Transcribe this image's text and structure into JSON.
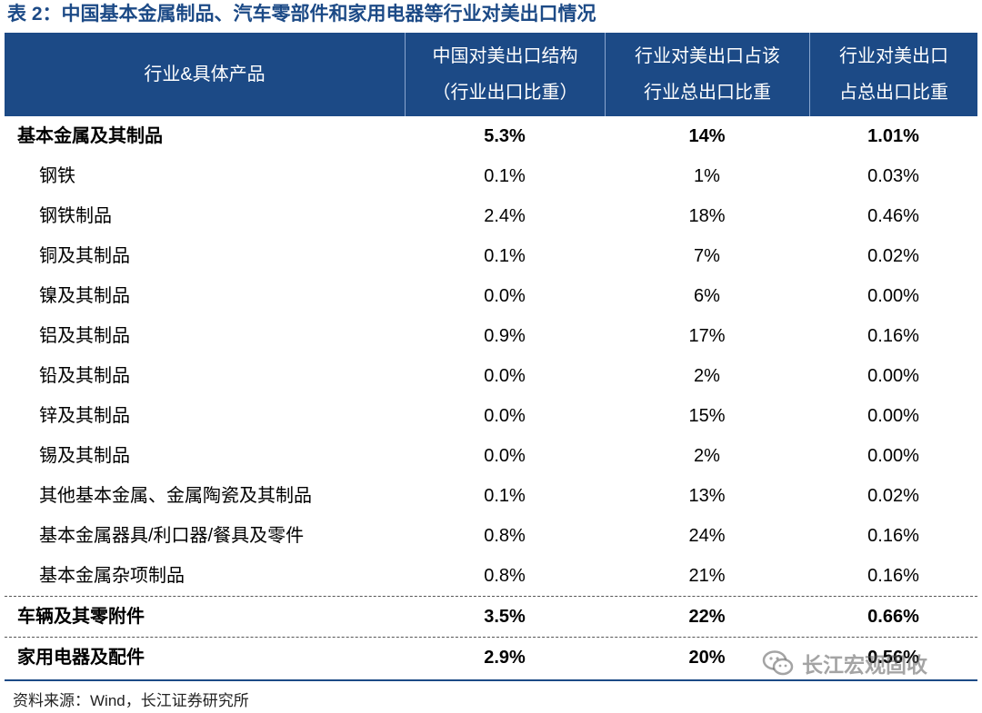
{
  "title": "表 2：中国基本金属制品、汽车零部件和家用电器等行业对美出口情况",
  "header": {
    "col0": "行业&具体产品",
    "col1_line1": "中国对美出口结构",
    "col1_line2": "（行业出口比重）",
    "col2_line1": "行业对美出口占该",
    "col2_line2": "行业总出口比重",
    "col3_line1": "行业对美出口",
    "col3_line2": "占总出口比重"
  },
  "rows": [
    {
      "name": "基本金属及其制品",
      "v1": "5.3%",
      "v2": "14%",
      "v3": "1.01%"
    },
    {
      "name": "钢铁",
      "v1": "0.1%",
      "v2": "1%",
      "v3": "0.03%"
    },
    {
      "name": "钢铁制品",
      "v1": "2.4%",
      "v2": "18%",
      "v3": "0.46%"
    },
    {
      "name": "铜及其制品",
      "v1": "0.1%",
      "v2": "7%",
      "v3": "0.02%"
    },
    {
      "name": "镍及其制品",
      "v1": "0.0%",
      "v2": "6%",
      "v3": "0.00%"
    },
    {
      "name": "铝及其制品",
      "v1": "0.9%",
      "v2": "17%",
      "v3": "0.16%"
    },
    {
      "name": "铅及其制品",
      "v1": "0.0%",
      "v2": "2%",
      "v3": "0.00%"
    },
    {
      "name": "锌及其制品",
      "v1": "0.0%",
      "v2": "15%",
      "v3": "0.00%"
    },
    {
      "name": "锡及其制品",
      "v1": "0.0%",
      "v2": "2%",
      "v3": "0.00%"
    },
    {
      "name": "其他基本金属、金属陶瓷及其制品",
      "v1": "0.1%",
      "v2": "13%",
      "v3": "0.02%"
    },
    {
      "name": "基本金属器具/利口器/餐具及零件",
      "v1": "0.8%",
      "v2": "24%",
      "v3": "0.16%"
    },
    {
      "name": "基本金属杂项制品",
      "v1": "0.8%",
      "v2": "21%",
      "v3": "0.16%"
    },
    {
      "name": "车辆及其零附件",
      "v1": "3.5%",
      "v2": "22%",
      "v3": "0.66%"
    },
    {
      "name": "家用电器及配件",
      "v1": "2.9%",
      "v2": "20%",
      "v3": "0.56%"
    }
  ],
  "source": "资料来源：Wind，长江证券研究所",
  "watermark": "长江宏观固收",
  "colors": {
    "header_bg": "#1c4a86",
    "title": "#1c4a86"
  }
}
